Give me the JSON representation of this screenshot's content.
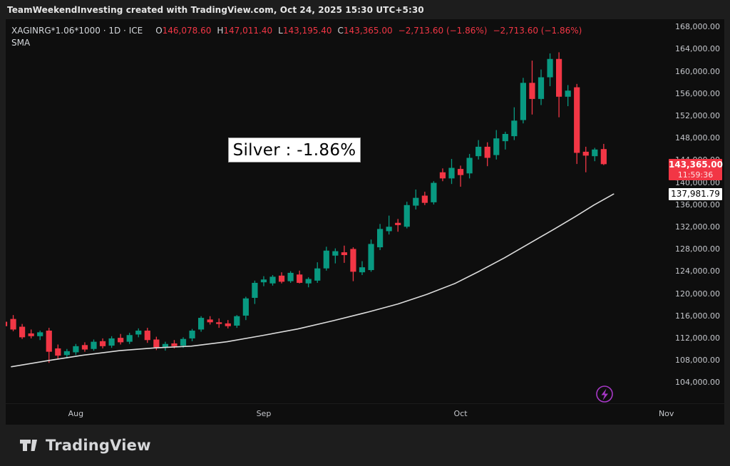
{
  "frame": {
    "title": "TeamWeekendInvesting created with TradingView.com, Oct 24, 2025 15:30 UTC+5:30"
  },
  "legend": {
    "symbol": "XAGINRG*1.06*1000 · 1D · ICE",
    "ohlc": [
      {
        "k": "O",
        "v": "146,078.60"
      },
      {
        "k": "H",
        "v": "147,011.40"
      },
      {
        "k": "L",
        "v": "143,195.40"
      },
      {
        "k": "C",
        "v": "143,365.00"
      }
    ],
    "change": "−2,713.60 (−1.86%)",
    "change2": "−2,713.60 (−1.86%)",
    "indicator": "SMA"
  },
  "overlay_label": {
    "text": "Silver : -1.86%"
  },
  "price_axis": {
    "tick_labels": [
      "168,000.00",
      "164,000.00",
      "160,000.00",
      "156,000.00",
      "152,000.00",
      "148,000.00",
      "144,000.00",
      "140,000.00",
      "136,000.00",
      "132,000.00",
      "128,000.00",
      "124,000.00",
      "120,000.00",
      "116,000.00",
      "112,000.00",
      "108,000.00",
      "104,000.00"
    ],
    "tick_values": [
      168000,
      164000,
      160000,
      156000,
      152000,
      148000,
      144000,
      140000,
      136000,
      132000,
      128000,
      124000,
      120000,
      116000,
      112000,
      108000,
      104000
    ],
    "last_price_badge": {
      "label": "143,365.00",
      "countdown": "11:59:36",
      "value": 143365,
      "bg": "#f23645"
    },
    "sma_badge": {
      "label": "137,981.79",
      "value": 137981.79,
      "bg": "#ffffff"
    }
  },
  "time_axis": {
    "labels": [
      {
        "text": "Aug",
        "i": 8
      },
      {
        "text": "Sep",
        "i": 29
      },
      {
        "text": "Oct",
        "i": 51
      },
      {
        "text": "Nov",
        "i": 74
      }
    ]
  },
  "footer": {
    "brand": "TradingView"
  },
  "colors": {
    "up": "#089981",
    "down": "#f23645",
    "sma_line": "#dcdcdc",
    "accent_purple": "#a838c8",
    "badge_red": "#f23645"
  },
  "chart_data": {
    "type": "candlestick",
    "title": "XAGINRG*1.06*1000 daily candles with SMA overlay",
    "ylim": [
      104000,
      168000
    ],
    "grid": false,
    "legend_position": "top-left",
    "candles_ohlc": [
      [
        115000,
        115600,
        113800,
        114200
      ],
      [
        115500,
        116200,
        113300,
        113600
      ],
      [
        114100,
        114600,
        111900,
        112200
      ],
      [
        112900,
        113600,
        112000,
        112400
      ],
      [
        112400,
        113400,
        111700,
        113100
      ],
      [
        113400,
        113900,
        107600,
        109600
      ],
      [
        110200,
        110900,
        108200,
        108900
      ],
      [
        109000,
        110100,
        108400,
        109700
      ],
      [
        109500,
        111000,
        109000,
        110600
      ],
      [
        110800,
        111300,
        109600,
        110000
      ],
      [
        110100,
        111800,
        109800,
        111400
      ],
      [
        111500,
        112000,
        110200,
        110600
      ],
      [
        110700,
        112400,
        110300,
        112000
      ],
      [
        112100,
        112800,
        110900,
        111300
      ],
      [
        111400,
        113000,
        111000,
        112600
      ],
      [
        112700,
        113800,
        112200,
        113400
      ],
      [
        113400,
        113900,
        111200,
        111700
      ],
      [
        111800,
        112300,
        109900,
        110400
      ],
      [
        110400,
        111400,
        109800,
        111000
      ],
      [
        111100,
        111700,
        110200,
        110600
      ],
      [
        110700,
        112200,
        110300,
        111900
      ],
      [
        112000,
        113700,
        111500,
        113400
      ],
      [
        113600,
        116000,
        113200,
        115700
      ],
      [
        115400,
        116000,
        114500,
        114900
      ],
      [
        114900,
        115600,
        113900,
        114600
      ],
      [
        114700,
        115300,
        113800,
        114200
      ],
      [
        114300,
        116200,
        113900,
        116000
      ],
      [
        116100,
        119500,
        115300,
        119200
      ],
      [
        119300,
        122400,
        118200,
        122000
      ],
      [
        122100,
        123200,
        121400,
        122600
      ],
      [
        121900,
        123400,
        121500,
        123100
      ],
      [
        123300,
        123900,
        121900,
        122200
      ],
      [
        122300,
        124100,
        122000,
        123800
      ],
      [
        123500,
        124200,
        121900,
        122000
      ],
      [
        121900,
        123000,
        121200,
        122700
      ],
      [
        122400,
        125700,
        122000,
        124600
      ],
      [
        124600,
        128500,
        124200,
        127800
      ],
      [
        126900,
        128200,
        125500,
        127700
      ],
      [
        127500,
        128700,
        125600,
        127000
      ],
      [
        128100,
        128400,
        122300,
        124000
      ],
      [
        123900,
        125900,
        123400,
        124800
      ],
      [
        124300,
        129800,
        124000,
        129000
      ],
      [
        128400,
        132600,
        127900,
        131700
      ],
      [
        131300,
        134100,
        130700,
        132100
      ],
      [
        132800,
        133500,
        131200,
        132400
      ],
      [
        132100,
        136600,
        131800,
        136000
      ],
      [
        135900,
        138800,
        135200,
        137300
      ],
      [
        137700,
        138400,
        136000,
        136400
      ],
      [
        136500,
        140300,
        136100,
        140000
      ],
      [
        141900,
        142600,
        140300,
        140800
      ],
      [
        140800,
        144300,
        139800,
        142700
      ],
      [
        142500,
        143100,
        139300,
        141400
      ],
      [
        141700,
        145200,
        140800,
        144500
      ],
      [
        144800,
        147700,
        144200,
        146500
      ],
      [
        146500,
        147300,
        143000,
        144500
      ],
      [
        145000,
        149500,
        144200,
        148000
      ],
      [
        147500,
        149200,
        146000,
        148800
      ],
      [
        148400,
        153600,
        147700,
        151200
      ],
      [
        151300,
        158900,
        150700,
        158000
      ],
      [
        158000,
        162000,
        152300,
        155100
      ],
      [
        155100,
        160400,
        154000,
        159000
      ],
      [
        159000,
        163300,
        157400,
        162300
      ],
      [
        162300,
        163500,
        151800,
        155500
      ],
      [
        155500,
        157600,
        153800,
        156600
      ],
      [
        157200,
        157800,
        143400,
        145400
      ],
      [
        145600,
        146500,
        141900,
        144900
      ],
      [
        144800,
        146300,
        143900,
        146000
      ],
      [
        146078.6,
        147011.4,
        143195.4,
        143365
      ]
    ],
    "sma_points": [
      [
        0.8,
        106900
      ],
      [
        4.9,
        108000
      ],
      [
        8.9,
        109000
      ],
      [
        12.9,
        109800
      ],
      [
        16.9,
        110300
      ],
      [
        20.9,
        110600
      ],
      [
        24.9,
        111400
      ],
      [
        28.8,
        112500
      ],
      [
        32.8,
        113700
      ],
      [
        36.8,
        115200
      ],
      [
        40.8,
        116800
      ],
      [
        44.0,
        118200
      ],
      [
        47.2,
        119900
      ],
      [
        50.4,
        121900
      ],
      [
        53.1,
        124100
      ],
      [
        55.9,
        126500
      ],
      [
        58.7,
        129100
      ],
      [
        61.5,
        131700
      ],
      [
        63.9,
        134000
      ],
      [
        65.9,
        136000
      ],
      [
        68.1,
        137981.79
      ]
    ]
  }
}
